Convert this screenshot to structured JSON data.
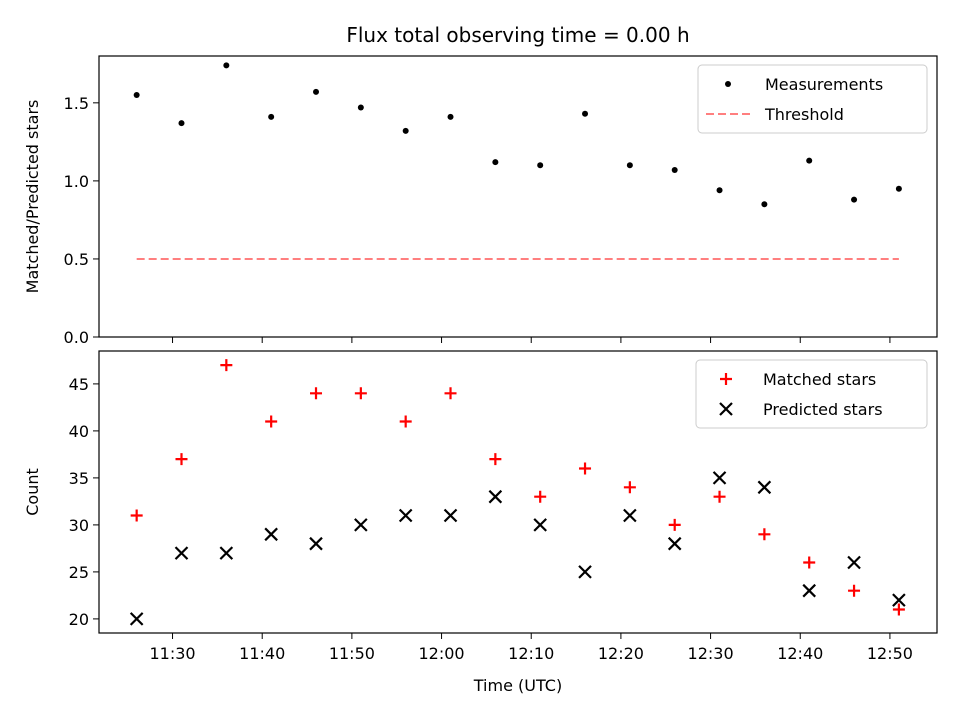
{
  "chart_data": [
    {
      "type": "scatter",
      "title": "Flux total observing time = 0.00 h",
      "xlabel": "",
      "ylabel": "Matched/Predicted stars",
      "ylim": [
        0.0,
        1.8
      ],
      "yticks": [
        "0.0",
        "0.5",
        "1.0",
        "1.5"
      ],
      "legend_location": "top-right",
      "series": [
        {
          "name": "Measurements",
          "marker": "dot",
          "color": "#000000",
          "x": [
            "11:26",
            "11:31",
            "11:36",
            "11:41",
            "11:46",
            "11:51",
            "11:56",
            "12:01",
            "12:06",
            "12:11",
            "12:16",
            "12:21",
            "12:26",
            "12:31",
            "12:36",
            "12:41",
            "12:46",
            "12:51"
          ],
          "values": [
            1.55,
            1.37,
            1.74,
            1.41,
            1.57,
            1.47,
            1.32,
            1.41,
            1.12,
            1.1,
            1.43,
            1.1,
            1.07,
            0.94,
            0.85,
            1.13,
            0.88,
            0.95
          ]
        },
        {
          "name": "Threshold",
          "marker": "dashed-line",
          "color": "#ff7f7f",
          "x": [
            "11:26",
            "12:51"
          ],
          "values": [
            0.5,
            0.5
          ]
        }
      ]
    },
    {
      "type": "scatter",
      "title": "",
      "xlabel": "Time (UTC)",
      "ylabel": "Count",
      "ylim": [
        18.5,
        48.5
      ],
      "yticks": [
        "20",
        "25",
        "30",
        "35",
        "40",
        "45"
      ],
      "xticks": [
        "11:30",
        "11:40",
        "11:50",
        "12:00",
        "12:10",
        "12:20",
        "12:30",
        "12:40",
        "12:50"
      ],
      "legend_location": "top-right",
      "series": [
        {
          "name": "Matched stars",
          "marker": "plus",
          "color": "#ff0000",
          "x": [
            "11:26",
            "11:31",
            "11:36",
            "11:41",
            "11:46",
            "11:51",
            "11:56",
            "12:01",
            "12:06",
            "12:11",
            "12:16",
            "12:21",
            "12:26",
            "12:31",
            "12:36",
            "12:41",
            "12:46",
            "12:51"
          ],
          "values": [
            31,
            37,
            47,
            41,
            44,
            44,
            41,
            44,
            37,
            33,
            36,
            34,
            30,
            33,
            29,
            26,
            23,
            21
          ]
        },
        {
          "name": "Predicted stars",
          "marker": "x",
          "color": "#000000",
          "x": [
            "11:26",
            "11:31",
            "11:36",
            "11:41",
            "11:46",
            "11:51",
            "11:56",
            "12:01",
            "12:06",
            "12:11",
            "12:16",
            "12:21",
            "12:26",
            "12:31",
            "12:36",
            "12:41",
            "12:46",
            "12:51"
          ],
          "values": [
            20,
            27,
            27,
            29,
            28,
            30,
            31,
            31,
            33,
            30,
            25,
            31,
            28,
            35,
            34,
            23,
            26,
            22
          ]
        }
      ]
    }
  ]
}
